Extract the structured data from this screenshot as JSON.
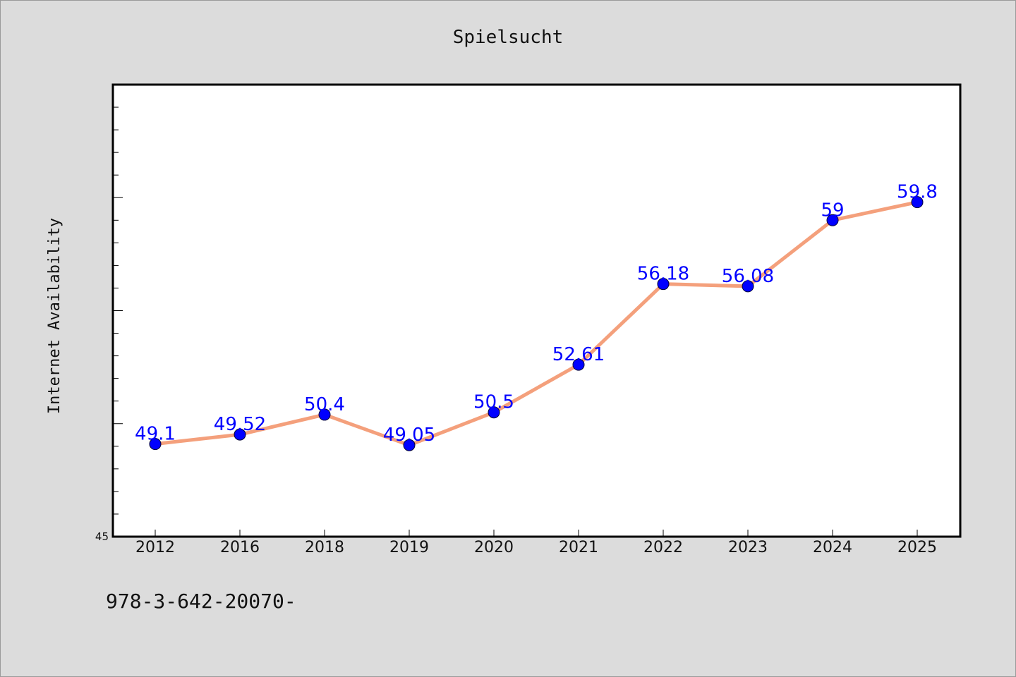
{
  "chart_data": {
    "type": "line",
    "title": "Spielsucht",
    "xlabel": "",
    "ylabel": "Internet Availability",
    "categories": [
      "2012",
      "2016",
      "2018",
      "2019",
      "2020",
      "2021",
      "2022",
      "2023",
      "2024",
      "2025"
    ],
    "series": [
      {
        "values": [
          49.1,
          49.52,
          50.4,
          49.05,
          50.5,
          52.61,
          56.18,
          56.08,
          59,
          59.8
        ],
        "data_labels": [
          "49.1",
          "49.52",
          "50.4",
          "49.05",
          "50.5",
          "52.61",
          "56.18",
          "56.08",
          "59",
          "59.8"
        ],
        "line_color": "#f4a07c",
        "marker_color": "#0000ff"
      }
    ],
    "ylim": [
      45,
      65
    ],
    "yticks_labeled": [
      "45"
    ],
    "grid": false,
    "legend": "none"
  },
  "footer_text": "978-3-642-20070-"
}
